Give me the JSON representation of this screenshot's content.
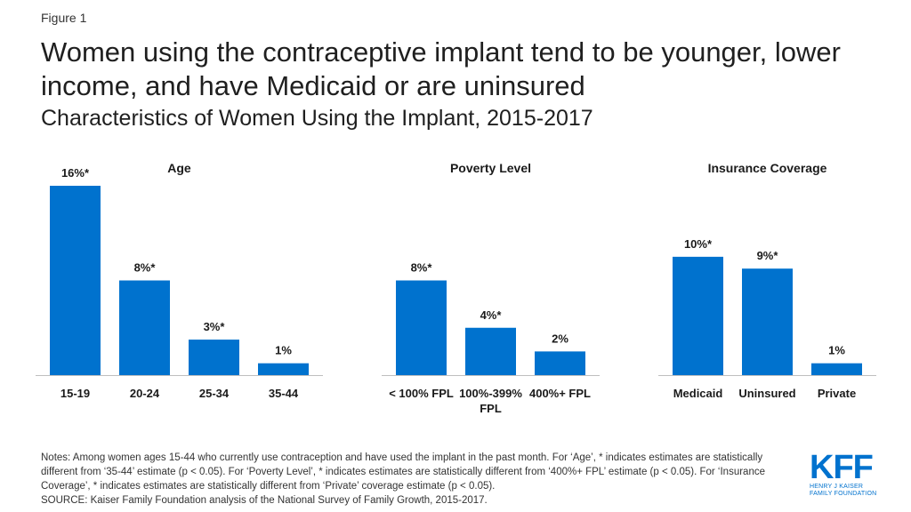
{
  "figure_label": "Figure 1",
  "title": "Women using the contraceptive implant tend to be younger, lower income, and have Medicaid or are uninsured",
  "subtitle": "Characteristics of Women Using the Implant, 2015-2017",
  "colors": {
    "bar": "#0072CE",
    "axis": "#bfbfbf",
    "text": "#1a1a1a"
  },
  "chart_data": [
    {
      "type": "bar",
      "title": "Age",
      "categories": [
        "15-19",
        "20-24",
        "25-34",
        "35-44"
      ],
      "values": [
        16,
        8,
        3,
        1
      ],
      "labels": [
        "16%*",
        "8%*",
        "3%*",
        "1%"
      ],
      "unit": "%",
      "ylim": [
        0,
        16
      ]
    },
    {
      "type": "bar",
      "title": "Poverty Level",
      "categories": [
        "< 100% FPL",
        "100%-399% FPL",
        "400%+ FPL"
      ],
      "values": [
        8,
        4,
        2
      ],
      "labels": [
        "8%*",
        "4%*",
        "2%"
      ],
      "unit": "%",
      "ylim": [
        0,
        16
      ]
    },
    {
      "type": "bar",
      "title": "Insurance Coverage",
      "categories": [
        "Medicaid",
        "Uninsured",
        "Private"
      ],
      "values": [
        10,
        9,
        1
      ],
      "labels": [
        "10%*",
        "9%*",
        "1%"
      ],
      "unit": "%",
      "ylim": [
        0,
        16
      ]
    }
  ],
  "notes": [
    "Notes: Among women ages 15-44 who currently use contraception and have used the implant in the past month. For ‘Age’, * indicates estimates are statistically different from ‘35-44’ estimate (p < 0.05). For ‘Poverty Level’, * indicates estimates are statistically different from ‘400%+ FPL’ estimate (p < 0.05). For ‘Insurance Coverage’, * indicates estimates are statistically different from ‘Private’ coverage estimate (p < 0.05).",
    "SOURCE: Kaiser Family Foundation analysis of the National Survey of Family Growth, 2015-2017."
  ],
  "logo": {
    "mark": "KFF",
    "line1": "HENRY J KAISER",
    "line2": "FAMILY FOUNDATION"
  }
}
